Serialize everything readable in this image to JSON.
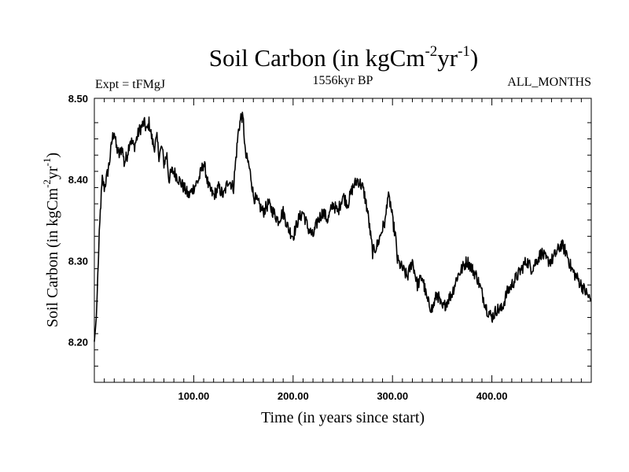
{
  "chart_data": {
    "type": "line",
    "title": {
      "main": "Soil Carbon (in kgCm",
      "sup1": "-2",
      "mid": "yr",
      "sup2": "-1",
      "end": ")"
    },
    "header_left": "Expt = tFMgJ",
    "header_center": "1556kyr BP",
    "header_right": "ALL_MONTHS",
    "xlabel": "Time (in years since start)",
    "ylabel": {
      "main": "Soil Carbon (in kgCm",
      "sup1": "-2",
      "mid": "yr",
      "sup2": "-1",
      "end": ")"
    },
    "xlim": [
      0,
      500
    ],
    "ylim": [
      8.15,
      8.5
    ],
    "x_ticks": [
      100,
      200,
      300,
      400
    ],
    "x_tick_labels": [
      "100.00",
      "200.00",
      "300.00",
      "400.00"
    ],
    "y_ticks": [
      8.2,
      8.3,
      8.4,
      8.5
    ],
    "y_tick_labels": [
      "8.20",
      "8.30",
      "8.40",
      "8.50"
    ],
    "series": [
      {
        "x": [
          0,
          2,
          4,
          6,
          8,
          10,
          12,
          15,
          18,
          20,
          22,
          25,
          28,
          30,
          33,
          36,
          40,
          45,
          50,
          53,
          55,
          58,
          60,
          63,
          65,
          68,
          70,
          73,
          75,
          78,
          80,
          85,
          90,
          95,
          100,
          105,
          110,
          112,
          115,
          120,
          125,
          130,
          135,
          140,
          142,
          145,
          148,
          150,
          152,
          155,
          158,
          160,
          165,
          170,
          175,
          180,
          185,
          190,
          195,
          200,
          205,
          210,
          215,
          220,
          225,
          230,
          235,
          240,
          245,
          250,
          255,
          260,
          265,
          270,
          272,
          275,
          280,
          285,
          290,
          293,
          295,
          298,
          300,
          303,
          305,
          310,
          315,
          320,
          325,
          330,
          335,
          340,
          345,
          350,
          355,
          360,
          365,
          370,
          375,
          380,
          385,
          390,
          395,
          400,
          405,
          410,
          415,
          420,
          425,
          430,
          435,
          440,
          445,
          450,
          455,
          460,
          465,
          470,
          475,
          480,
          485,
          490,
          495,
          500
        ],
        "values": [
          8.2,
          8.23,
          8.3,
          8.36,
          8.4,
          8.39,
          8.4,
          8.42,
          8.45,
          8.46,
          8.44,
          8.43,
          8.44,
          8.42,
          8.43,
          8.45,
          8.44,
          8.46,
          8.47,
          8.46,
          8.47,
          8.45,
          8.44,
          8.45,
          8.43,
          8.44,
          8.42,
          8.43,
          8.4,
          8.41,
          8.41,
          8.4,
          8.39,
          8.38,
          8.39,
          8.4,
          8.42,
          8.41,
          8.39,
          8.38,
          8.39,
          8.38,
          8.4,
          8.39,
          8.42,
          8.46,
          8.48,
          8.47,
          8.43,
          8.42,
          8.4,
          8.38,
          8.37,
          8.36,
          8.37,
          8.36,
          8.35,
          8.36,
          8.34,
          8.33,
          8.35,
          8.36,
          8.34,
          8.33,
          8.35,
          8.36,
          8.35,
          8.37,
          8.36,
          8.38,
          8.37,
          8.39,
          8.4,
          8.39,
          8.38,
          8.36,
          8.31,
          8.32,
          8.34,
          8.35,
          8.38,
          8.37,
          8.35,
          8.33,
          8.3,
          8.29,
          8.28,
          8.3,
          8.27,
          8.28,
          8.25,
          8.24,
          8.26,
          8.24,
          8.25,
          8.26,
          8.28,
          8.29,
          8.3,
          8.29,
          8.28,
          8.26,
          8.24,
          8.23,
          8.24,
          8.24,
          8.26,
          8.27,
          8.28,
          8.29,
          8.3,
          8.29,
          8.3,
          8.31,
          8.3,
          8.3,
          8.31,
          8.32,
          8.31,
          8.29,
          8.28,
          8.27,
          8.26,
          8.25
        ]
      }
    ],
    "grid": false,
    "line_color": "#000000"
  }
}
